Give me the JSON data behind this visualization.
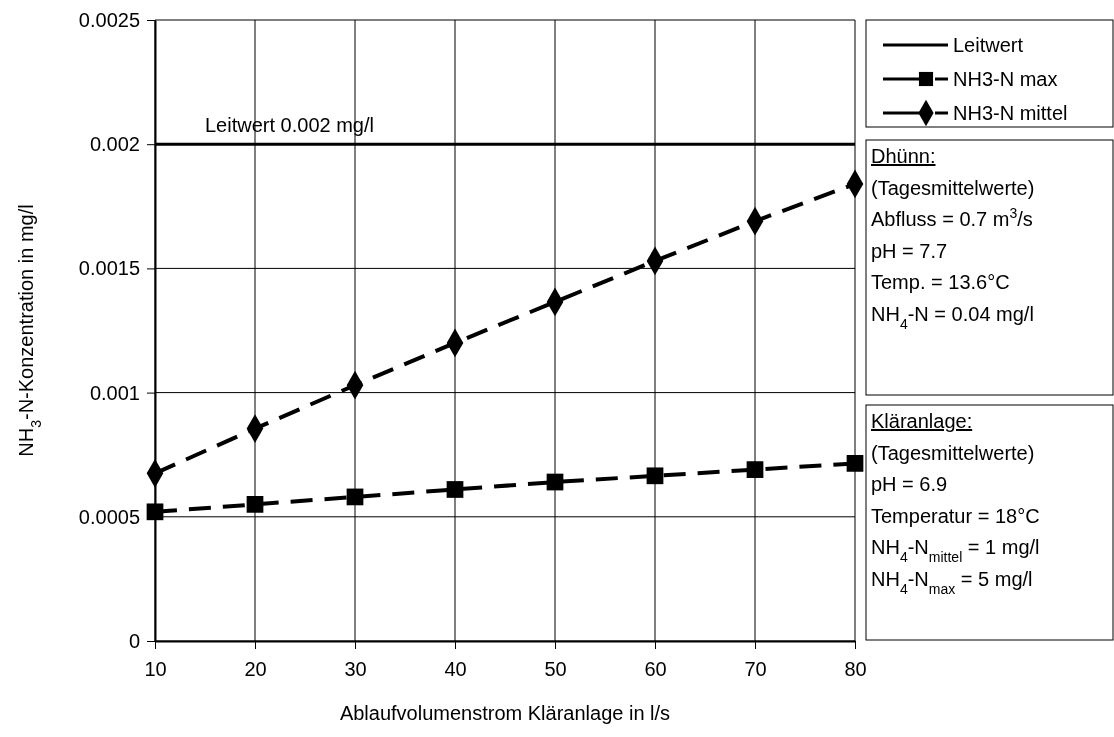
{
  "chart_data": {
    "type": "line",
    "xlabel": "Ablaufvolumenstrom Kläranlage in l/s",
    "ylabel": "NH$_{3}$-N-Konzentration in mg/l",
    "x": [
      10,
      20,
      30,
      40,
      50,
      60,
      70,
      80
    ],
    "series": [
      {
        "name": "Leitwert",
        "color": "#000000",
        "x": [
          10,
          80
        ],
        "values": [
          0.002,
          0.002
        ],
        "line_style": "solid",
        "marker": "none"
      },
      {
        "name": "NH3-N max",
        "color": "#000000",
        "values": [
          0.00052,
          0.00055,
          0.00058,
          0.00061,
          0.00064,
          0.000665,
          0.00069,
          0.000715
        ],
        "line_style": "dashed",
        "marker": "square"
      },
      {
        "name": "NH3-N mittel",
        "color": "#000000",
        "values": [
          0.000675,
          0.000855,
          0.00103,
          0.0012,
          0.001365,
          0.00153,
          0.00169,
          0.00184
        ],
        "line_style": "dashed",
        "marker": "diamond"
      }
    ],
    "xlim": [
      10,
      80
    ],
    "xticks": [
      10,
      20,
      30,
      40,
      50,
      60,
      70,
      80
    ],
    "ylim": [
      0,
      0.0025
    ],
    "yticks": [
      0,
      0.0005,
      0.001,
      0.0015,
      0.002,
      0.0025
    ],
    "grid": true,
    "legend": "top right",
    "annotations": [
      {
        "text": "Leitwert 0.002 mg/l",
        "x": 10,
        "y": 0.002
      },
      "Dhünn:\n(Tagesmittelwerte)\nAbfluss = 0.7 m$^{3}$/s\npH = 7.7\nTemp. = 13.6°C\nNH$_{4}$-N = 0.04 mg/l",
      "Kläranlage:\n(Tagesmittelwerte)\npH = 6.9\nTemperatur = 18°C\nNH$_{4}$-N$_{mittel}$ = 1 mg/l\nNH$_{4}$-N$_{max}$ = 5 mg/l"
    ]
  }
}
